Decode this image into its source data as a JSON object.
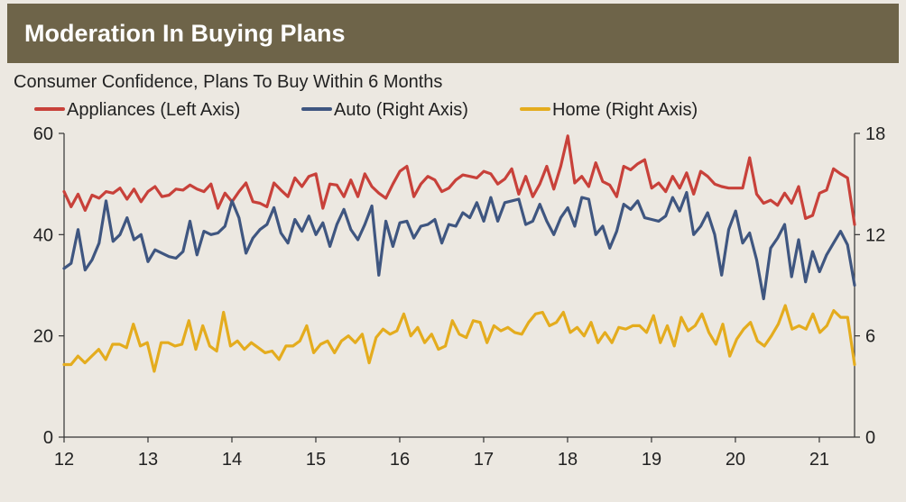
{
  "header": {
    "title": "Moderation In Buying Plans"
  },
  "colors": {
    "header_bg": "#6e6449",
    "appliances": "#c8413a",
    "auto": "#3f5680",
    "home": "#e4ac1e"
  },
  "chart_data": {
    "type": "line",
    "subtitle": "Consumer Confidence, Plans To Buy Within 6 Months",
    "legend_position": "top-left",
    "grid": false,
    "x_ticks": [
      "12",
      "13",
      "14",
      "15",
      "16",
      "17",
      "18",
      "19",
      "20",
      "21"
    ],
    "xlim": [
      2012,
      2021.42
    ],
    "y_left": {
      "ticks": [
        "0",
        "20",
        "40",
        "60"
      ],
      "range": [
        0,
        60
      ]
    },
    "y_right": {
      "ticks": [
        "0",
        "6",
        "12",
        "18"
      ],
      "range": [
        0,
        18
      ]
    },
    "series": [
      {
        "name": "Appliances (Left Axis)",
        "axis": "left",
        "color": "#c8413a",
        "values": [
          48.5,
          45.5,
          48,
          44.8,
          47.8,
          47.2,
          48.5,
          48.2,
          49.2,
          47,
          49,
          46.5,
          48.5,
          49.5,
          47.5,
          47.8,
          49,
          48.8,
          49.8,
          49,
          48.5,
          50,
          45.2,
          48.2,
          46.5,
          48.5,
          50.2,
          46.5,
          46.2,
          45.5,
          50.2,
          48.8,
          47.5,
          51.2,
          49.5,
          51.5,
          52,
          45.2,
          50,
          49.8,
          47.5,
          50.8,
          47.5,
          52,
          49.5,
          48.2,
          47.2,
          50,
          52.5,
          53.5,
          47.5,
          50,
          51.5,
          50.8,
          48.5,
          49.2,
          50.8,
          51.8,
          51.5,
          51.2,
          52.5,
          52,
          50,
          51,
          53,
          48,
          51.5,
          47.5,
          50,
          53.5,
          49,
          53.5,
          59.5,
          50.2,
          51.5,
          49.5,
          54.2,
          50.5,
          49.8,
          47.5,
          53.5,
          52.8,
          54,
          54.8,
          49.2,
          50.2,
          48.5,
          51.5,
          49.2,
          52.2,
          48,
          52.5,
          51.5,
          50,
          49.5,
          49.2,
          49.2,
          49.2,
          55.2,
          48,
          46.2,
          46.8,
          45.8,
          48.2,
          46.2,
          49.5,
          43.2,
          43.8,
          48.2,
          48.8,
          53,
          52,
          51.2,
          42
        ]
      },
      {
        "name": "Auto (Right Axis)",
        "axis": "right",
        "color": "#3f5680",
        "values": [
          10,
          10.3,
          12.3,
          9.9,
          10.5,
          11.5,
          14,
          11.6,
          12,
          13,
          11.7,
          12,
          10.4,
          11.1,
          10.9,
          10.7,
          10.6,
          11,
          12.8,
          10.8,
          12.2,
          12.0,
          12.1,
          12.5,
          14,
          13,
          10.9,
          11.8,
          12.3,
          12.6,
          13.6,
          12.1,
          11.5,
          12.9,
          12.2,
          13.1,
          12,
          12.7,
          11.3,
          12.6,
          13.5,
          12.3,
          11.7,
          12.6,
          13.7,
          9.6,
          12.8,
          11.3,
          12.7,
          12.8,
          11.8,
          12.5,
          12.6,
          12.9,
          11.5,
          12.6,
          12.5,
          13.3,
          13.0,
          13.9,
          12.8,
          14.2,
          12.8,
          13.9,
          14,
          14.1,
          12.6,
          12.8,
          13.8,
          12.8,
          12.0,
          13.0,
          13.6,
          12.5,
          14.2,
          14.1,
          12.0,
          12.5,
          11.2,
          12.2,
          13.8,
          13.5,
          14.0,
          13.0,
          12.9,
          12.8,
          13.1,
          14.2,
          13.4,
          14.5,
          12.0,
          12.5,
          13.3,
          12.0,
          9.6,
          12.3,
          13.4,
          11.5,
          12.1,
          10.5,
          8.2,
          11.2,
          11.8,
          12.6,
          9.5,
          11.7,
          9.2,
          11.0,
          9.8,
          10.8,
          11.5,
          12.2,
          11.4,
          9.0
        ]
      },
      {
        "name": "Home (Right Axis)",
        "axis": "right",
        "color": "#e4ac1e",
        "values": [
          4.3,
          4.3,
          4.8,
          4.4,
          4.8,
          5.2,
          4.6,
          5.5,
          5.5,
          5.3,
          6.7,
          5.4,
          5.6,
          3.9,
          5.6,
          5.6,
          5.4,
          5.5,
          6.9,
          5.2,
          6.6,
          5.4,
          5.1,
          7.4,
          5.4,
          5.7,
          5.2,
          5.6,
          5.3,
          5.0,
          5.1,
          4.6,
          5.4,
          5.4,
          5.7,
          6.6,
          5.0,
          5.5,
          5.7,
          5.0,
          5.7,
          6.0,
          5.6,
          6.1,
          4.4,
          5.9,
          6.4,
          6.1,
          6.3,
          7.3,
          6.0,
          6.5,
          5.6,
          6.1,
          5.2,
          5.4,
          6.9,
          6.1,
          5.9,
          6.9,
          6.8,
          5.6,
          6.6,
          6.3,
          6.5,
          6.2,
          6.1,
          6.8,
          7.3,
          7.4,
          6.6,
          6.8,
          7.4,
          6.2,
          6.5,
          6.0,
          6.8,
          5.6,
          6.2,
          5.6,
          6.5,
          6.4,
          6.6,
          6.6,
          6.2,
          7.2,
          5.6,
          6.6,
          5.4,
          7.1,
          6.3,
          6.6,
          7.3,
          6.2,
          5.5,
          6.7,
          4.8,
          5.8,
          6.4,
          6.8,
          5.7,
          5.4,
          6.0,
          6.7,
          7.8,
          6.4,
          6.6,
          6.4,
          7.3,
          6.2,
          6.6,
          7.5,
          7.1,
          7.1,
          4.3
        ]
      }
    ]
  }
}
